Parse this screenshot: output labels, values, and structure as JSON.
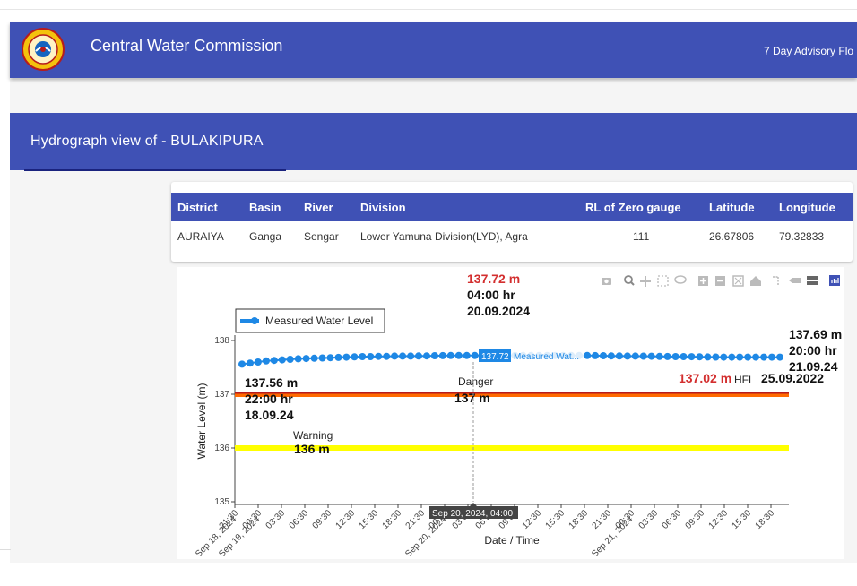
{
  "header": {
    "title": "Central Water Commission",
    "advisory_link": "7 Day Advisory Flo"
  },
  "subheader": {
    "title": "Hydrograph view of - BULAKIPURA"
  },
  "station_table": {
    "columns": [
      "District",
      "Basin",
      "River",
      "Division",
      "RL of Zero gauge",
      "Latitude",
      "Longitude"
    ],
    "row": [
      "AURAIYA",
      "Ganga",
      "Sengar",
      "Lower Yamuna Division(LYD), Agra",
      "111",
      "26.67806",
      "79.32833"
    ]
  },
  "toolbar": {
    "icons": [
      "camera-icon",
      "zoom-icon",
      "pan-icon",
      "box-select-icon",
      "lasso-icon",
      "zoom-in-icon",
      "zoom-out-icon",
      "autoscale-icon",
      "home-icon",
      "spike-lines-icon",
      "hover-closest-icon",
      "hover-compare-icon",
      "plotly-logo-icon"
    ]
  },
  "colors": {
    "header": "#3f51b5",
    "series": "#1e88e5",
    "danger": "#ff6a00",
    "warning": "#ffff00",
    "red_text": "#d32f2f"
  },
  "chart_data": {
    "type": "line",
    "ylabel": "Water Level (m)",
    "xlabel": "Date / Time",
    "ylim": [
      135,
      138
    ],
    "y_ticks": [
      "138",
      "137",
      "136",
      "135"
    ],
    "x_tick_labels": [
      "21:30",
      "00:30",
      "03:30",
      "06:30",
      "09:30",
      "12:30",
      "15:30",
      "18:30",
      "21:30",
      "00:30",
      "03:30",
      "06:30",
      "09:30",
      "12:30",
      "15:30",
      "18:30",
      "21:30",
      "00:30",
      "03:30",
      "06:30",
      "09:30",
      "12:30",
      "15:30",
      "18:30"
    ],
    "date_tick_labels": [
      "Sep 18, 2024",
      "Sep 19, 2024",
      "Sep 20, 2024",
      "Sep 21, 2024"
    ],
    "legend": {
      "label": "Measured Water Level",
      "placement": "top-left"
    },
    "series": [
      {
        "name": "Measured Water Level",
        "values": [
          137.56,
          137.58,
          137.6,
          137.62,
          137.63,
          137.64,
          137.65,
          137.66,
          137.665,
          137.67,
          137.675,
          137.68,
          137.685,
          137.69,
          137.695,
          137.7,
          137.7,
          137.705,
          137.705,
          137.71,
          137.71,
          137.71,
          137.712,
          137.714,
          137.716,
          137.718,
          137.72,
          137.72,
          137.72,
          137.72,
          137.72,
          137.72,
          137.72,
          137.72,
          137.72,
          137.72,
          137.72,
          137.72,
          137.72,
          137.72,
          137.72,
          137.72,
          137.72,
          137.72,
          137.718,
          137.716,
          137.714,
          137.712,
          137.71,
          137.71,
          137.708,
          137.706,
          137.704,
          137.702,
          137.7,
          137.7,
          137.698,
          137.696,
          137.694,
          137.692,
          137.69,
          137.69,
          137.69,
          137.69,
          137.69,
          137.69,
          137.69,
          137.69
        ]
      }
    ],
    "danger": {
      "label": "Danger",
      "value_label": "137 m",
      "value": 137
    },
    "warning": {
      "label": "Warning",
      "value_label": "136 m",
      "value": 136
    },
    "hfl": {
      "value_label": "137.02 m",
      "label": "HFL",
      "date": "25.09.2022",
      "value": 137.02
    },
    "first_point": {
      "value": "137.56 m",
      "time": "22:00 hr",
      "date": "18.09.24"
    },
    "peak_point": {
      "value": "137.72 m",
      "time": "04:00 hr",
      "date": "20.09.2024"
    },
    "last_point": {
      "value": "137.69 m",
      "time": "20:00 hr",
      "date": "21.09.24"
    },
    "hover": {
      "value_tag": "137.72",
      "series_tag": "Measured Wat...",
      "x_tag": "Sep 20, 2024, 04:00"
    }
  }
}
